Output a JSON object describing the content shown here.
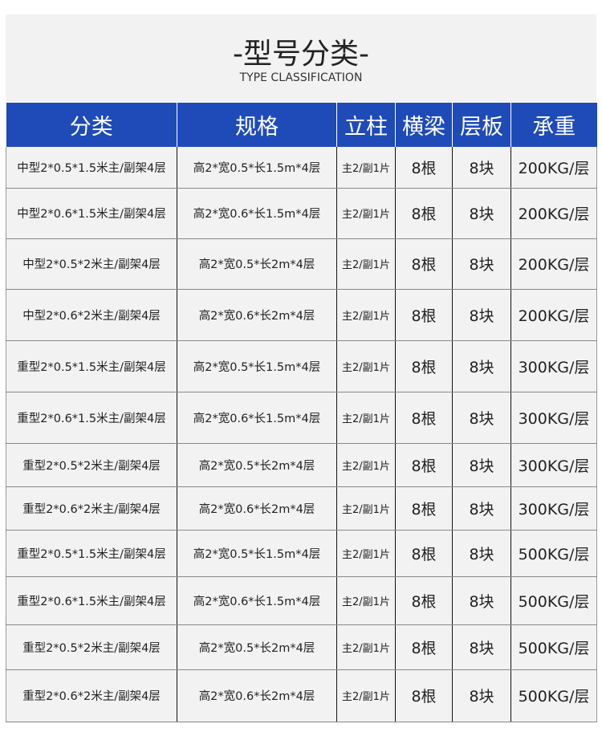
{
  "title": "-型号分类-",
  "subtitle": "TYPE CLASSIFICATION",
  "colors": {
    "header": "#1f4bb9",
    "row_bg": "#f2f2f2"
  },
  "headers": [
    "分类",
    "规格",
    "立柱",
    "横梁",
    "层板",
    "承重"
  ],
  "rows": [
    [
      "中型2*0.5*1.5米主/副架4层",
      "高2*宽0.5*长1.5m*4层",
      "主2/副1片",
      "8根",
      "8块",
      "200KG/层"
    ],
    [
      "中型2*0.6*1.5米主/副架4层",
      "高2*宽0.6*长1.5m*4层",
      "主2/副1片",
      "8根",
      "8块",
      "200KG/层"
    ],
    [
      "中型2*0.5*2米主/副架4层",
      "高2*宽0.5*长2m*4层",
      "主2/副1片",
      "8根",
      "8块",
      "200KG/层"
    ],
    [
      "中型2*0.6*2米主/副架4层",
      "高2*宽0.6*长2m*4层",
      "主2/副1片",
      "8根",
      "8块",
      "200KG/层"
    ],
    [
      "重型2*0.5*1.5米主/副架4层",
      "高2*宽0.5*长1.5m*4层",
      "主2/副1片",
      "8根",
      "8块",
      "300KG/层"
    ],
    [
      "重型2*0.6*1.5米主/副架4层",
      "高2*宽0.6*长1.5m*4层",
      "主2/副1片",
      "8根",
      "8块",
      "300KG/层"
    ],
    [
      "重型2*0.5*2米主/副架4层",
      "高2*宽0.5*长2m*4层",
      "主2/副1片",
      "8根",
      "8块",
      "300KG/层"
    ],
    [
      "重型2*0.6*2米主/副架4层",
      "高2*宽0.6*长2m*4层",
      "主2/副1片",
      "8根",
      "8块",
      "300KG/层"
    ],
    [
      "重型2*0.5*1.5米主/副架4层",
      "高2*宽0.5*长1.5m*4层",
      "主2/副1片",
      "8根",
      "8块",
      "500KG/层"
    ],
    [
      "重型2*0.6*1.5米主/副架4层",
      "高2*宽0.6*长1.5m*4层",
      "主2/副1片",
      "8根",
      "8块",
      "500KG/层"
    ],
    [
      "重型2*0.5*2米主/副架4层",
      "高2*宽0.5*长2m*4层",
      "主2/副1片",
      "8根",
      "8块",
      "500KG/层"
    ],
    [
      "重型2*0.6*2米主/副架4层",
      "高2*宽0.6*长2m*4层",
      "主2/副1片",
      "8根",
      "8块",
      "500KG/层"
    ]
  ]
}
